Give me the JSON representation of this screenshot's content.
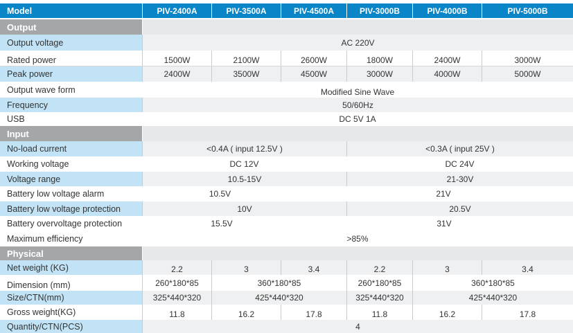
{
  "header": {
    "label": "Model",
    "models": [
      "PIV-2400A",
      "PIV-3500A",
      "PIV-4500A",
      "PIV-3000B",
      "PIV-4000B",
      "PIV-5000B"
    ]
  },
  "sections": {
    "output": "Output",
    "input": "Input",
    "physical": "Physical"
  },
  "output": {
    "output_voltage": {
      "label": "Output voltage",
      "value": "AC 220V"
    },
    "rated_power": {
      "label": "Rated power",
      "values": [
        "1500W",
        "2100W",
        "2600W",
        "1800W",
        "2400W",
        "3000W"
      ]
    },
    "peak_power": {
      "label": "Peak power",
      "values": [
        "2400W",
        "3500W",
        "4500W",
        "3000W",
        "4000W",
        "5000W"
      ]
    },
    "wave_form": {
      "label": "Output wave form",
      "value": "Modified Sine Wave"
    },
    "frequency": {
      "label": "Frequency",
      "value": "50/60Hz"
    },
    "usb": {
      "label": "USB",
      "value": "DC 5V 1A"
    }
  },
  "input": {
    "no_load_current": {
      "label": "No-load current",
      "a": "<0.4A ( input 12.5V )",
      "b": "<0.3A ( input 25V )"
    },
    "working_voltage": {
      "label": "Working voltage",
      "a": "DC 12V",
      "b": "DC 24V"
    },
    "voltage_range": {
      "label": "Voltage range",
      "a": "10.5-15V",
      "b": "21-30V"
    },
    "low_voltage_alarm": {
      "label": "Battery low voltage alarm",
      "a": "10.5V",
      "b": "21V"
    },
    "low_voltage_protection": {
      "label": "Battery low voltage protection",
      "a": "10V",
      "b": "20.5V"
    },
    "overvoltage_protection": {
      "label": "Battery overvoltage protection",
      "a": "15.5V",
      "b": "31V"
    },
    "max_efficiency": {
      "label": "Maximum efficiency",
      "value": ">85%"
    }
  },
  "physical": {
    "net_weight": {
      "label": "Net weight (KG)",
      "values": [
        "2.2",
        "3",
        "3.4",
        "2.2",
        "3",
        "3.4"
      ]
    },
    "dimension": {
      "label": "Dimension (mm)",
      "values": [
        "260*180*85",
        "360*180*85",
        "260*180*85",
        "360*180*85"
      ]
    },
    "size_ctn": {
      "label": "Size/CTN(mm)",
      "values": [
        "325*440*320",
        "425*440*320",
        "325*440*320",
        "425*440*320"
      ]
    },
    "gross_weight": {
      "label": "Gross weight(KG)",
      "values": [
        "11.8",
        "16.2",
        "17.8",
        "11.8",
        "16.2",
        "17.8"
      ]
    },
    "quantity": {
      "label": "Quantity/CTN(PCS)",
      "value": "4"
    }
  }
}
